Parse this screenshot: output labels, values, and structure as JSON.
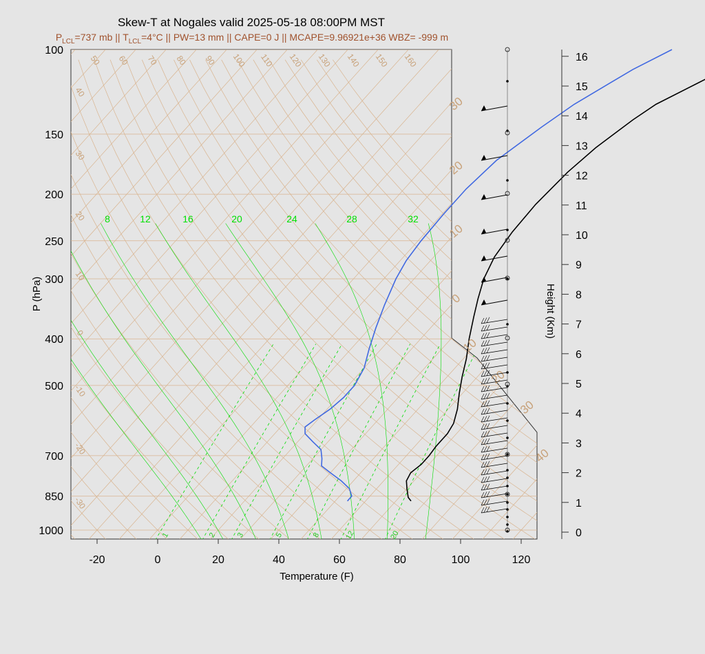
{
  "title": "Skew-T at Nogales valid 2025-05-18 08:00PM MST",
  "subtitle": {
    "p_lcl": "P",
    "p_lcl_sub": "LCL",
    "p_lcl_val": "=737 mb || T",
    "t_lcl_sub": "LCL",
    "rest": "=4°C || PW=13 mm || CAPE=0 J || MCAPE=9.96921e+36 WBZ= -999 m"
  },
  "chart_data": {
    "type": "line",
    "title": "Skew-T at Nogales valid 2025-05-18 08:00PM MST",
    "xlabel": "Temperature (F)",
    "ylabel": "P (hPa)",
    "y2label": "Height (Km)",
    "x_ticks": [
      -20,
      0,
      20,
      40,
      60,
      80,
      100,
      120
    ],
    "x_tick_labels": [
      "-20",
      "0",
      "20",
      "40",
      "60",
      "80",
      "100",
      "120"
    ],
    "p_ticks": [
      100,
      150,
      200,
      250,
      300,
      400,
      500,
      700,
      850,
      1000
    ],
    "p_tick_labels": [
      "100",
      "150",
      "200",
      "250",
      "300",
      "400",
      "500",
      "700",
      "850",
      "1000"
    ],
    "height_ticks": [
      0,
      1,
      2,
      3,
      4,
      5,
      6,
      7,
      8,
      9,
      10,
      11,
      12,
      13,
      14,
      15,
      16
    ],
    "height_tick_labels": [
      "0",
      "1",
      "2",
      "3",
      "4",
      "5",
      "6",
      "7",
      "8",
      "9",
      "10",
      "11",
      "12",
      "13",
      "14",
      "15",
      "16"
    ],
    "series": [
      {
        "role": "temperature",
        "color": "#000000",
        "points": [
          {
            "p": 870,
            "t": 75
          },
          {
            "p": 855,
            "t": 73
          },
          {
            "p": 820,
            "t": 70
          },
          {
            "p": 790,
            "t": 67.5
          },
          {
            "p": 760,
            "t": 66.5
          },
          {
            "p": 730,
            "t": 67.5
          },
          {
            "p": 700,
            "t": 67.5
          },
          {
            "p": 670,
            "t": 67
          },
          {
            "p": 630,
            "t": 67
          },
          {
            "p": 600,
            "t": 66
          },
          {
            "p": 560,
            "t": 63
          },
          {
            "p": 520,
            "t": 59
          },
          {
            "p": 480,
            "t": 55
          },
          {
            "p": 440,
            "t": 51
          },
          {
            "p": 400,
            "t": 46
          },
          {
            "p": 360,
            "t": 41
          },
          {
            "p": 330,
            "t": 37
          },
          {
            "p": 300,
            "t": 33
          },
          {
            "p": 270,
            "t": 30
          },
          {
            "p": 240,
            "t": 28.5
          },
          {
            "p": 210,
            "t": 28
          },
          {
            "p": 180,
            "t": 29
          },
          {
            "p": 160,
            "t": 31
          },
          {
            "p": 140,
            "t": 35
          },
          {
            "p": 130,
            "t": 38
          },
          {
            "p": 115,
            "t": 47
          },
          {
            "p": 104,
            "t": 52
          }
        ]
      },
      {
        "role": "dewpoint",
        "color": "#4169e1",
        "points": [
          {
            "p": 870,
            "t": 54
          },
          {
            "p": 850,
            "t": 54
          },
          {
            "p": 820,
            "t": 51
          },
          {
            "p": 790,
            "t": 46
          },
          {
            "p": 760,
            "t": 40
          },
          {
            "p": 735,
            "t": 35
          },
          {
            "p": 710,
            "t": 33
          },
          {
            "p": 680,
            "t": 30
          },
          {
            "p": 655,
            "t": 25
          },
          {
            "p": 630,
            "t": 20
          },
          {
            "p": 610,
            "t": 18
          },
          {
            "p": 590,
            "t": 19
          },
          {
            "p": 560,
            "t": 21
          },
          {
            "p": 530,
            "t": 22
          },
          {
            "p": 500,
            "t": 22
          },
          {
            "p": 460,
            "t": 20
          },
          {
            "p": 420,
            "t": 16
          },
          {
            "p": 380,
            "t": 12
          },
          {
            "p": 340,
            "t": 8
          },
          {
            "p": 300,
            "t": 4
          },
          {
            "p": 275,
            "t": 2
          },
          {
            "p": 250,
            "t": 1
          },
          {
            "p": 220,
            "t": 0.5
          },
          {
            "p": 195,
            "t": 0.5
          },
          {
            "p": 170,
            "t": 2
          },
          {
            "p": 145,
            "t": 7
          },
          {
            "p": 130,
            "t": 11
          },
          {
            "p": 110,
            "t": 20
          },
          {
            "p": 100,
            "t": 27
          }
        ]
      }
    ],
    "mixing_ratio_labels": [
      "1",
      "2",
      "3",
      "5",
      "8",
      "12",
      "20"
    ],
    "wet_adiabat_labels": [
      "8",
      "12",
      "16",
      "20",
      "24",
      "28",
      "32"
    ],
    "isotherm_labels_top": [
      "50",
      "60",
      "70",
      "80",
      "90",
      "100",
      "110",
      "120",
      "130",
      "140",
      "150",
      "160"
    ],
    "isotherm_labels_left": [
      "40",
      "30",
      "20",
      "10",
      "0",
      "-10",
      "-20",
      "-30"
    ],
    "dry_adiabat_labels_right": [
      "30",
      "20",
      "10",
      "0",
      "10",
      "20",
      "30",
      "40"
    ]
  },
  "colors": {
    "background": "#e5e5e5",
    "isotherm": "#d9b48f",
    "isobar": "#d9b48f",
    "moist": "#00dd00",
    "temperature": "#000000",
    "dewpoint": "#4169e1",
    "subtitle": "#a0522d"
  }
}
